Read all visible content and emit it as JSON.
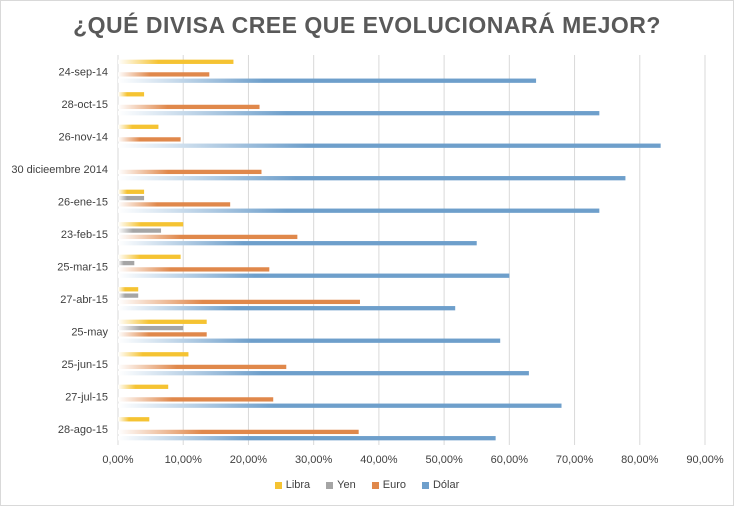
{
  "chart_data": {
    "type": "bar",
    "orientation": "horizontal",
    "title": "¿QUÉ DIVISA CREE QUE EVOLUCIONARÁ MEJOR?",
    "categories": [
      "24-sep-14",
      "28-oct-15",
      "26-nov-14",
      "30 dicieembre 2014",
      "26-ene-15",
      "23-feb-15",
      "25-mar-15",
      "27-abr-15",
      "25-may",
      "25-jun-15",
      "27-jul-15",
      "28-ago-15"
    ],
    "series": [
      {
        "name": "Libra",
        "color": "#F5C332",
        "values": [
          17.7,
          4.0,
          6.2,
          0,
          4.0,
          10.0,
          9.6,
          3.1,
          13.6,
          10.8,
          7.7,
          4.8
        ]
      },
      {
        "name": "Yen",
        "color": "#A5A5A5",
        "values": [
          0,
          0,
          0,
          0,
          4.0,
          6.6,
          2.5,
          3.1,
          10.0,
          0,
          0,
          0
        ]
      },
      {
        "name": "Euro",
        "color": "#E0884B",
        "values": [
          14.0,
          21.7,
          9.6,
          22.0,
          17.2,
          27.5,
          23.2,
          37.1,
          13.6,
          25.8,
          23.8,
          36.9
        ]
      },
      {
        "name": "Dólar",
        "color": "#6E9FCB",
        "values": [
          64.1,
          73.8,
          83.2,
          77.8,
          73.8,
          55.0,
          60.0,
          51.7,
          58.6,
          63.0,
          68.0,
          57.9
        ]
      }
    ],
    "xlim": [
      0,
      90
    ],
    "xticks": [
      "0,00%",
      "10,00%",
      "20,00%",
      "30,00%",
      "40,00%",
      "50,00%",
      "60,00%",
      "70,00%",
      "80,00%",
      "90,00%"
    ],
    "grid": true,
    "legend_position": "bottom"
  }
}
